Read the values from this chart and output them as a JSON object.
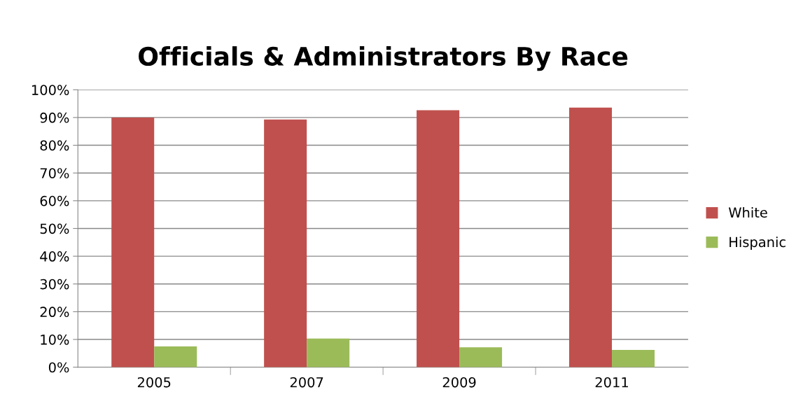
{
  "chart_data": {
    "type": "bar",
    "title": "Officials & Administrators By Race",
    "categories": [
      "2005",
      "2007",
      "2009",
      "2011"
    ],
    "series": [
      {
        "name": "White",
        "color": "#c0504d",
        "values": [
          90,
          89.3,
          92.6,
          93.6
        ]
      },
      {
        "name": "Hispanic",
        "color": "#9bbb59",
        "values": [
          7.5,
          10.3,
          7.2,
          6.2
        ]
      }
    ],
    "ylim": [
      0,
      100
    ],
    "yticks": [
      {
        "value": 0,
        "label": "0%"
      },
      {
        "value": 10,
        "label": "10%"
      },
      {
        "value": 20,
        "label": "20%"
      },
      {
        "value": 30,
        "label": "30%"
      },
      {
        "value": 40,
        "label": "40%"
      },
      {
        "value": 50,
        "label": "50%"
      },
      {
        "value": 60,
        "label": "60%"
      },
      {
        "value": 70,
        "label": "70%"
      },
      {
        "value": 80,
        "label": "80%"
      },
      {
        "value": 90,
        "label": "90%"
      },
      {
        "value": 100,
        "label": "100%"
      }
    ],
    "grid": "y",
    "legend": "right"
  }
}
